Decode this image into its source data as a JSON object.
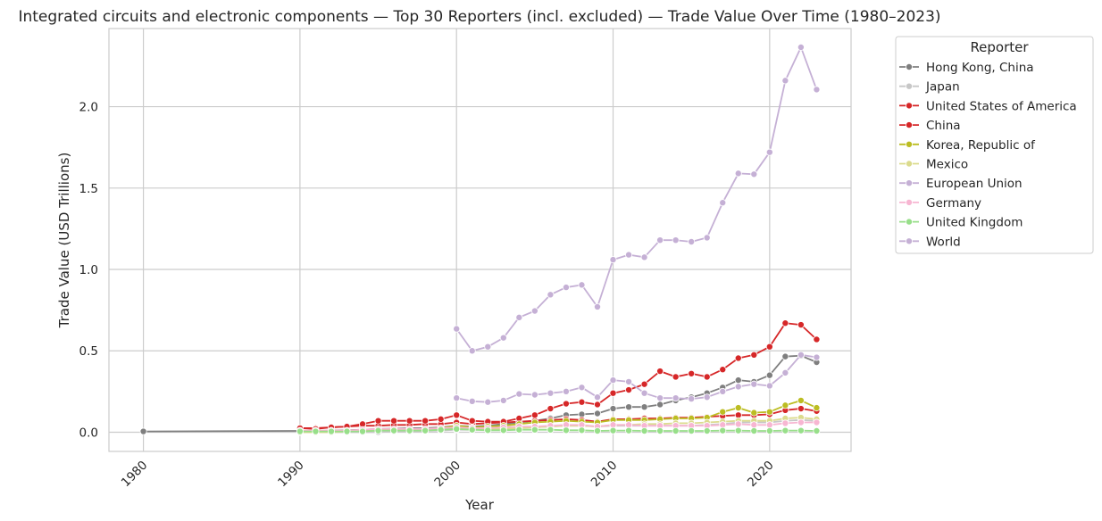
{
  "chart_data": {
    "type": "line",
    "title": "Integrated circuits and electronic components — Top 30 Reporters (incl. excluded) — Trade Value Over Time (1980–2023)",
    "xlabel": "Year",
    "ylabel": "Trade Value (USD Trillions)",
    "xlim": [
      1977.8,
      2025.2
    ],
    "ylim": [
      -0.118,
      2.48
    ],
    "xticks": [
      1980,
      1990,
      2000,
      2010,
      2020
    ],
    "yticks": [
      0.0,
      0.5,
      1.0,
      1.5,
      2.0
    ],
    "grid": true,
    "legend": {
      "title": "Reporter",
      "placement": "outside-right"
    },
    "x": [
      1980,
      1990,
      1991,
      1992,
      1993,
      1994,
      1995,
      1996,
      1997,
      1998,
      1999,
      2000,
      2001,
      2002,
      2003,
      2004,
      2005,
      2006,
      2007,
      2008,
      2009,
      2010,
      2011,
      2012,
      2013,
      2014,
      2015,
      2016,
      2017,
      2018,
      2019,
      2020,
      2021,
      2022,
      2023
    ],
    "series": [
      {
        "name": "Hong Kong, China",
        "color": "#7f7f7f",
        "values": [
          0.005,
          0.008,
          0.008,
          0.01,
          0.012,
          0.015,
          0.02,
          0.022,
          0.025,
          0.025,
          0.03,
          0.04,
          0.035,
          0.04,
          0.05,
          0.06,
          0.07,
          0.085,
          0.105,
          0.11,
          0.115,
          0.145,
          0.155,
          0.155,
          0.17,
          0.195,
          0.215,
          0.24,
          0.275,
          0.32,
          0.31,
          0.35,
          0.465,
          0.47,
          0.43
        ]
      },
      {
        "name": "Japan",
        "color": "#c7c7c7",
        "values": [
          null,
          0.0,
          0.0,
          0.0,
          0.0,
          0.0,
          0.0,
          0.005,
          0.005,
          0.008,
          0.01,
          0.015,
          0.015,
          0.018,
          0.02,
          0.025,
          0.03,
          0.035,
          0.04,
          0.04,
          0.035,
          0.04,
          0.04,
          0.04,
          0.04,
          0.04,
          0.04,
          0.045,
          0.05,
          0.06,
          0.06,
          0.06,
          0.07,
          0.075,
          0.07
        ]
      },
      {
        "name": "United States of America",
        "color": "#d62728",
        "values": [
          null,
          0.025,
          0.025,
          0.03,
          0.035,
          0.04,
          0.04,
          0.045,
          0.045,
          0.05,
          0.05,
          0.06,
          0.05,
          0.055,
          0.06,
          0.065,
          0.07,
          0.075,
          0.08,
          0.075,
          0.065,
          0.08,
          0.08,
          0.085,
          0.085,
          0.09,
          0.09,
          0.095,
          0.1,
          0.105,
          0.105,
          0.11,
          0.135,
          0.145,
          0.13
        ]
      },
      {
        "name": "China",
        "color": "#d62728",
        "values": [
          null,
          0.025,
          0.02,
          0.03,
          0.035,
          0.05,
          0.07,
          0.07,
          0.07,
          0.07,
          0.08,
          0.105,
          0.07,
          0.065,
          0.065,
          0.085,
          0.105,
          0.145,
          0.175,
          0.185,
          0.17,
          0.24,
          0.26,
          0.295,
          0.375,
          0.34,
          0.36,
          0.34,
          0.385,
          0.455,
          0.475,
          0.525,
          0.67,
          0.66,
          0.57
        ]
      },
      {
        "name": "Korea, Republic of",
        "color": "#bcbd22",
        "values": [
          null,
          null,
          null,
          0.005,
          0.005,
          0.01,
          0.015,
          0.015,
          0.015,
          0.02,
          0.025,
          0.04,
          0.03,
          0.035,
          0.04,
          0.05,
          0.06,
          0.065,
          0.07,
          0.065,
          0.06,
          0.075,
          0.075,
          0.075,
          0.08,
          0.085,
          0.085,
          0.09,
          0.125,
          0.15,
          0.12,
          0.125,
          0.165,
          0.195,
          0.15
        ]
      },
      {
        "name": "Mexico",
        "color": "#dbdb8d",
        "values": [
          null,
          0.0,
          0.0,
          0.0,
          0.005,
          0.005,
          0.01,
          0.01,
          0.015,
          0.015,
          0.02,
          0.025,
          0.02,
          0.02,
          0.02,
          0.025,
          0.03,
          0.035,
          0.04,
          0.04,
          0.035,
          0.045,
          0.045,
          0.05,
          0.05,
          0.055,
          0.055,
          0.06,
          0.065,
          0.07,
          0.07,
          0.07,
          0.085,
          0.09,
          0.08
        ]
      },
      {
        "name": "European Union",
        "color": "#c5b0d5",
        "values": [
          null,
          null,
          null,
          null,
          null,
          null,
          null,
          null,
          null,
          null,
          null,
          0.21,
          0.19,
          0.185,
          0.195,
          0.235,
          0.23,
          0.24,
          0.25,
          0.275,
          0.215,
          0.32,
          0.31,
          0.24,
          0.21,
          0.21,
          0.205,
          0.215,
          0.25,
          0.28,
          0.295,
          0.285,
          0.365,
          0.475,
          0.46
        ]
      },
      {
        "name": "Germany",
        "color": "#f7b6d2",
        "values": [
          null,
          0.01,
          0.01,
          0.01,
          0.01,
          0.015,
          0.02,
          0.02,
          0.02,
          0.02,
          0.025,
          0.03,
          0.025,
          0.025,
          0.03,
          0.035,
          0.035,
          0.04,
          0.045,
          0.045,
          0.035,
          0.045,
          0.045,
          0.04,
          0.04,
          0.04,
          0.04,
          0.04,
          0.045,
          0.05,
          0.045,
          0.045,
          0.055,
          0.06,
          0.06
        ]
      },
      {
        "name": "United Kingdom",
        "color": "#98df8a",
        "values": [
          null,
          0.005,
          0.005,
          0.005,
          0.005,
          0.005,
          0.01,
          0.01,
          0.01,
          0.01,
          0.015,
          0.02,
          0.015,
          0.012,
          0.012,
          0.015,
          0.015,
          0.015,
          0.012,
          0.012,
          0.008,
          0.01,
          0.01,
          0.008,
          0.008,
          0.008,
          0.008,
          0.008,
          0.01,
          0.01,
          0.008,
          0.008,
          0.01,
          0.01,
          0.008
        ]
      },
      {
        "name": "World",
        "color": "#c5b0d5",
        "values": [
          null,
          null,
          null,
          null,
          null,
          null,
          null,
          null,
          null,
          null,
          null,
          0.635,
          0.5,
          0.525,
          0.58,
          0.705,
          0.745,
          0.845,
          0.89,
          0.905,
          0.77,
          1.06,
          1.09,
          1.075,
          1.18,
          1.18,
          1.17,
          1.195,
          1.41,
          1.59,
          1.585,
          1.72,
          2.16,
          2.365,
          2.105
        ]
      }
    ]
  }
}
